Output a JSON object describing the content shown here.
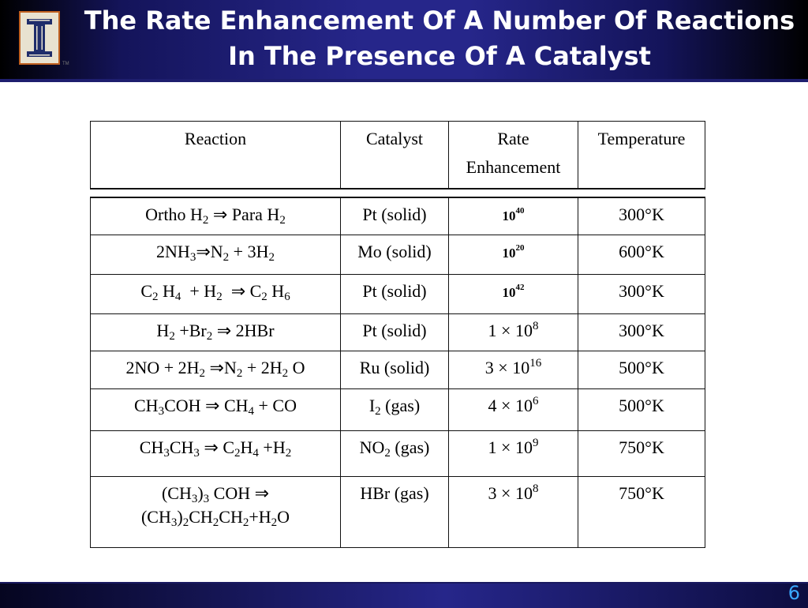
{
  "slide": {
    "title": "The Rate Enhancement Of A Number Of Reactions In The Presence Of A Catalyst",
    "page_number": "6",
    "logo_icon": "illinois-block-i-icon",
    "trademark": "TM"
  },
  "table": {
    "headers": {
      "reaction": "Reaction",
      "catalyst": "Catalyst",
      "rate_line1": "Rate",
      "rate_line2": "Enhancement",
      "temperature": "Temperature"
    },
    "rows": [
      {
        "reaction_html": "Ortho H<sub>2</sub> &rArr; Para H<sub>2</sub>",
        "catalyst_html": "Pt (solid)",
        "rate_html": "10<sup>40</sup>",
        "rate_style": "bold",
        "temperature": "300°K"
      },
      {
        "reaction_html": "2NH<sub>3</sub>&rArr;N<sub>2</sub> + 3H<sub>2</sub>",
        "catalyst_html": "Mo (solid)",
        "rate_html": "10<sup>20</sup>",
        "rate_style": "bold",
        "temperature": "600°K"
      },
      {
        "reaction_html": "C<sub>2</sub> H<sub>4</sub> &nbsp;+ H<sub>2</sub> &nbsp;&rArr; C<sub>2</sub> H<sub>6</sub>",
        "catalyst_html": "Pt (solid)",
        "rate_html": "10<sup>42</sup>",
        "rate_style": "bold",
        "temperature": "300°K"
      },
      {
        "reaction_html": "H<sub>2</sub> +Br<sub>2</sub> &rArr; 2HBr",
        "catalyst_html": "Pt (solid)",
        "rate_html": "1 &times; 10<sup>8</sup>",
        "rate_style": "normal",
        "temperature": "300°K"
      },
      {
        "reaction_html": "2NO + 2H<sub>2</sub> &rArr;N<sub>2</sub> + 2H<sub>2</sub> O",
        "catalyst_html": "Ru (solid)",
        "rate_html": "3 &times; 10<sup>16</sup>",
        "rate_style": "normal",
        "temperature": "500°K"
      },
      {
        "reaction_html": "CH<sub>3</sub>COH &rArr; CH<sub>4</sub> + CO",
        "catalyst_html": "I<sub>2</sub> (gas)",
        "rate_html": "4 &times; 10<sup>6</sup>",
        "rate_style": "normal",
        "temperature": "500°K"
      },
      {
        "reaction_html": "CH<sub>3</sub>CH<sub>3</sub> &rArr; C<sub>2</sub>H<sub>4</sub> +H<sub>2</sub>",
        "catalyst_html": "NO<sub>2</sub> (gas)",
        "rate_html": "1 &times; 10<sup>9</sup>",
        "rate_style": "normal",
        "temperature": "750°K"
      },
      {
        "reaction_html": "(CH<sub>3</sub>)<sub>3</sub> COH &rArr;<br>(CH<sub>3</sub>)<sub>2</sub>CH<sub>2</sub>CH<sub>2</sub>+H<sub>2</sub>O",
        "catalyst_html": "HBr (gas)",
        "rate_html": "3 &times; 10<sup>8</sup>",
        "rate_style": "normal",
        "temperature": "750°K"
      }
    ]
  },
  "colors": {
    "title_text": "#ffffff",
    "header_band": "#26268a",
    "page_number": "#3aa8ff"
  }
}
